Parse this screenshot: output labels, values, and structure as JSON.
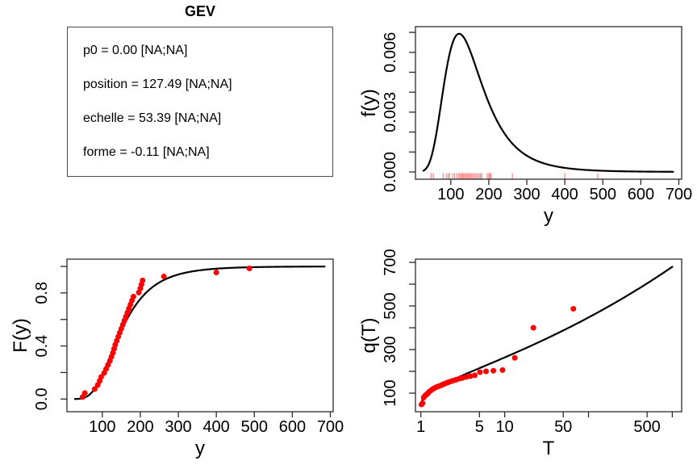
{
  "info": {
    "title": "GEV",
    "lines": [
      "p0 = 0.00 [NA;NA]",
      "position = 127.49 [NA;NA]",
      "echelle = 53.39 [NA;NA]",
      "forme = -0.11 [NA;NA]"
    ]
  },
  "chart_data": {
    "sample": [
      48,
      54,
      80,
      88,
      93,
      97,
      105,
      110,
      115,
      120,
      124,
      128,
      131,
      134,
      138,
      142,
      146,
      150,
      154,
      158,
      162,
      166,
      170,
      174,
      178,
      182,
      196,
      200,
      203,
      206,
      262,
      400,
      487
    ],
    "gev_fit": {
      "p0": 0.0,
      "position": 127.49,
      "echelle": 53.39,
      "forme": -0.11
    },
    "plotting_position_rule": "(i-0.5)/n",
    "return_period_rule": "T = 1/(1-p)",
    "colors": {
      "curve": "#000000",
      "points": "#ff0000",
      "rug": "rgba(255,0,0,0.5)",
      "frame": "#2b2b2b"
    },
    "panels": [
      {
        "id": "density",
        "type": "line",
        "xlabel": "y",
        "ylabel": "f(y)",
        "xlim": [
          7,
          706
        ],
        "ylim": [
          -0.00036,
          0.00729
        ],
        "curve": {
          "fn": "gev_pdf",
          "from": 28,
          "to": 685
        },
        "rug": "sample",
        "xticks": {
          "labeled": [
            {
              "v": 100,
              "t": "100"
            },
            {
              "v": 200,
              "t": "200"
            },
            {
              "v": 300,
              "t": "300"
            },
            {
              "v": 400,
              "t": "400"
            },
            {
              "v": 500,
              "t": "500"
            },
            {
              "v": 600,
              "t": "600"
            },
            {
              "v": 700,
              "t": "700"
            }
          ],
          "minor": []
        },
        "yticks": {
          "labeled": [
            {
              "v": 0,
              "t": "0.000"
            },
            {
              "v": 0.003,
              "t": "0.003"
            },
            {
              "v": 0.006,
              "t": "0.006"
            }
          ],
          "minor": [
            0.001,
            0.002,
            0.004,
            0.005,
            0.007
          ]
        }
      },
      {
        "id": "cdf",
        "type": "line+scatter",
        "xlabel": "y",
        "ylabel": "F(y)",
        "xlim": [
          7,
          706
        ],
        "ylim": [
          -0.076,
          1.095
        ],
        "curve": {
          "fn": "gev_cdf",
          "from": 28,
          "to": 685
        },
        "points": "sample_vs_empirical_prob",
        "xticks": {
          "labeled": [
            {
              "v": 100,
              "t": "100"
            },
            {
              "v": 200,
              "t": "200"
            },
            {
              "v": 300,
              "t": "300"
            },
            {
              "v": 400,
              "t": "400"
            },
            {
              "v": 500,
              "t": "500"
            },
            {
              "v": 600,
              "t": "600"
            },
            {
              "v": 700,
              "t": "700"
            }
          ],
          "minor": []
        },
        "yticks": {
          "labeled": [
            {
              "v": 0,
              "t": "0.0"
            },
            {
              "v": 0.4,
              "t": "0.4"
            },
            {
              "v": 0.8,
              "t": "0.8"
            }
          ],
          "minor": [
            0.2,
            0.6,
            1.0
          ]
        }
      },
      {
        "id": "return",
        "type": "line+scatter",
        "xscale": "log",
        "xlabel": "T",
        "ylabel": "q(T)",
        "xlim": [
          0.86,
          1440
        ],
        "ylim": [
          15,
          715
        ],
        "curve": {
          "fn": "gev_quantile_of_T",
          "from": 1.02,
          "to": 1000
        },
        "points": "sample_vs_return_period",
        "xticks": {
          "labeled": [
            {
              "v": 1,
              "t": "1"
            },
            {
              "v": 5,
              "t": "5"
            },
            {
              "v": 10,
              "t": "10"
            },
            {
              "v": 50,
              "t": "50"
            },
            {
              "v": 500,
              "t": "500"
            }
          ],
          "minor": [
            100,
            1000
          ]
        },
        "yticks": {
          "labeled": [
            {
              "v": 100,
              "t": "100"
            },
            {
              "v": 300,
              "t": "300"
            },
            {
              "v": 500,
              "t": "500"
            },
            {
              "v": 700,
              "t": "700"
            }
          ],
          "minor": [
            200,
            400,
            600
          ]
        }
      }
    ]
  }
}
